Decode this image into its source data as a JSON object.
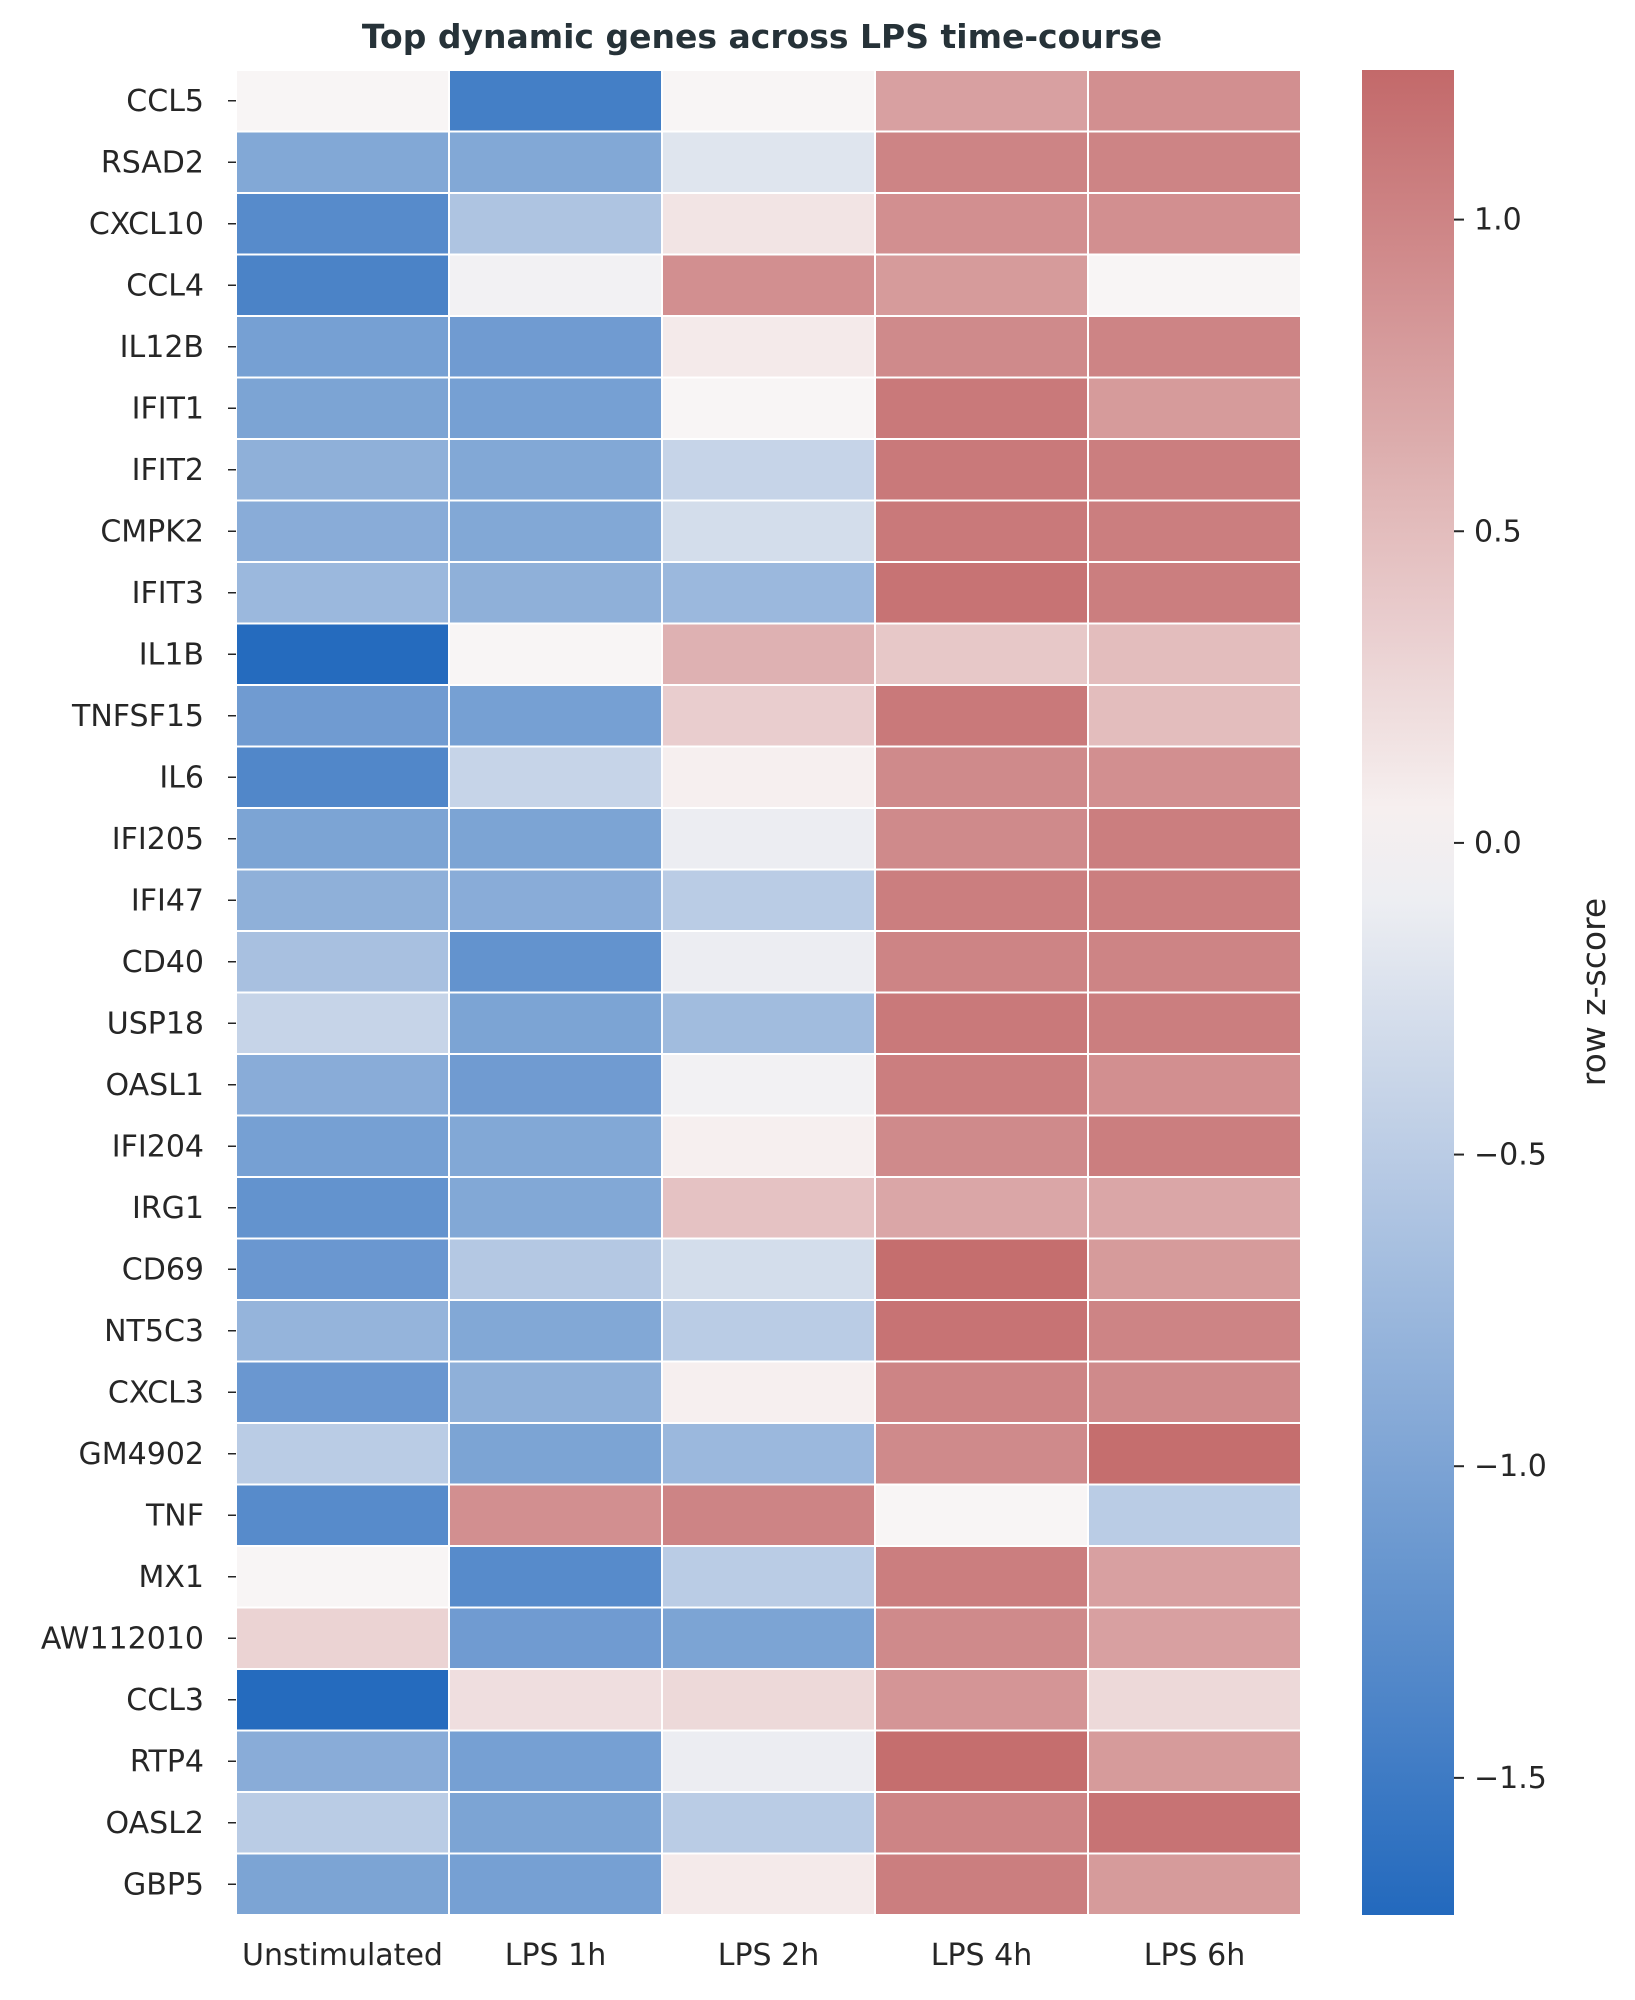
{
  "chart_data": {
    "type": "heatmap",
    "title": "Top dynamic genes across LPS time-course",
    "xlabel": "",
    "ylabel": "",
    "columns": [
      "Unstimulated",
      "LPS 1h",
      "LPS 2h",
      "LPS 4h",
      "LPS 6h"
    ],
    "rows": [
      "CCL5",
      "RSAD2",
      "CXCL10",
      "CCL4",
      "IL12B",
      "IFIT1",
      "IFIT2",
      "CMPK2",
      "IFIT3",
      "IL1B",
      "TNFSF15",
      "IL6",
      "IFI205",
      "IFI47",
      "CD40",
      "USP18",
      "OASL1",
      "IFI204",
      "IRG1",
      "CD69",
      "NT5C3",
      "CXCL3",
      "GM4902",
      "TNF",
      "MX1",
      "AW112010",
      "CCL3",
      "RTP4",
      "OASL2",
      "GBP5"
    ],
    "values": [
      [
        0.0,
        -1.45,
        0.0,
        0.75,
        0.9
      ],
      [
        -0.95,
        -0.95,
        -0.2,
        1.0,
        1.0
      ],
      [
        -1.3,
        -0.6,
        0.15,
        0.9,
        0.9
      ],
      [
        -1.4,
        -0.05,
        0.9,
        0.8,
        0.0
      ],
      [
        -1.05,
        -1.1,
        0.1,
        0.95,
        1.0
      ],
      [
        -1.0,
        -1.05,
        0.0,
        1.1,
        0.8
      ],
      [
        -0.85,
        -0.95,
        -0.4,
        1.1,
        1.05
      ],
      [
        -0.9,
        -0.95,
        -0.3,
        1.1,
        1.05
      ],
      [
        -0.75,
        -0.85,
        -0.75,
        1.15,
        1.05
      ],
      [
        -1.7,
        0.0,
        0.6,
        0.4,
        0.5
      ],
      [
        -1.1,
        -1.05,
        0.35,
        1.1,
        0.5
      ],
      [
        -1.35,
        -0.4,
        0.05,
        0.95,
        0.9
      ],
      [
        -1.0,
        -1.0,
        -0.1,
        0.95,
        1.05
      ],
      [
        -0.85,
        -0.9,
        -0.5,
        1.05,
        1.05
      ],
      [
        -0.65,
        -1.2,
        -0.1,
        1.0,
        1.0
      ],
      [
        -0.4,
        -1.0,
        -0.7,
        1.1,
        1.05
      ],
      [
        -0.9,
        -1.1,
        -0.05,
        1.05,
        0.9
      ],
      [
        -1.05,
        -0.95,
        0.05,
        0.95,
        1.05
      ],
      [
        -1.2,
        -0.95,
        0.45,
        0.7,
        0.7
      ],
      [
        -1.15,
        -0.55,
        -0.3,
        1.2,
        0.8
      ],
      [
        -0.8,
        -0.95,
        -0.5,
        1.15,
        1.0
      ],
      [
        -1.15,
        -0.85,
        0.05,
        1.0,
        0.95
      ],
      [
        -0.5,
        -1.0,
        -0.75,
        0.95,
        1.2
      ],
      [
        -1.3,
        0.9,
        1.0,
        0.0,
        -0.5
      ],
      [
        0.0,
        -1.3,
        -0.5,
        1.05,
        0.75
      ],
      [
        0.3,
        -1.1,
        -1.0,
        0.95,
        0.75
      ],
      [
        -1.7,
        0.2,
        0.25,
        0.85,
        0.25
      ],
      [
        -0.9,
        -1.05,
        -0.1,
        1.2,
        0.8
      ],
      [
        -0.5,
        -1.0,
        -0.5,
        1.0,
        1.15
      ],
      [
        -1.0,
        -1.05,
        0.1,
        1.05,
        0.8
      ]
    ],
    "colorbar": {
      "label": "row z-score",
      "range": [
        -1.72,
        1.24
      ],
      "ticks": [
        1.0,
        0.5,
        0.0,
        -0.5,
        -1.0,
        -1.5
      ],
      "tick_labels": [
        "1.0",
        "0.5",
        "0.0",
        "−0.5",
        "−1.0",
        "−1.5"
      ]
    },
    "colors": {
      "low": "#2369bd",
      "mid": "#f8f5f5",
      "high": "#c3696a"
    },
    "grid": false,
    "legend": "colorbar-right"
  }
}
